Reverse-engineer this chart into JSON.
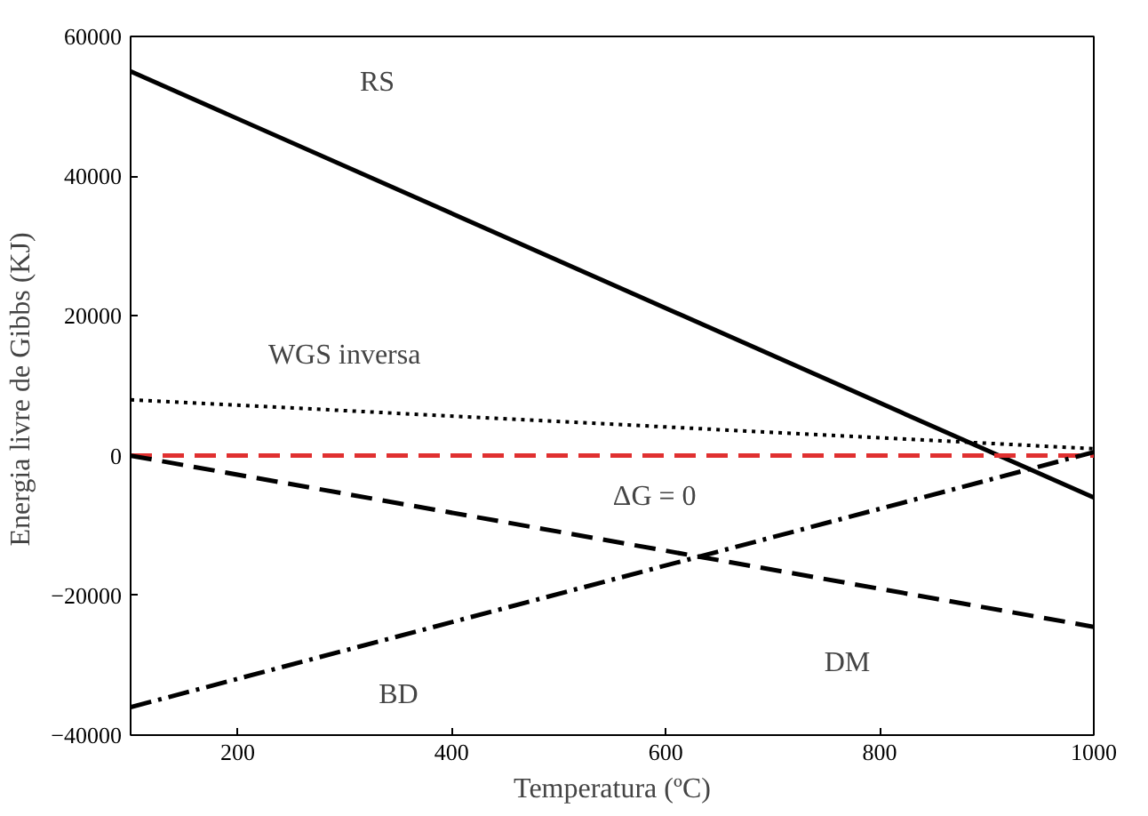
{
  "chart_data": {
    "type": "line",
    "xlabel": "Temperatura (ºC)",
    "ylabel": "Energia livre de Gibbs  (KJ)",
    "xlim": [
      100,
      1000
    ],
    "ylim": [
      -40000,
      60000
    ],
    "xticks": [
      200,
      400,
      600,
      800,
      1000
    ],
    "yticks": [
      -40000,
      -20000,
      0,
      20000,
      40000,
      60000
    ],
    "grid": false,
    "legend": false,
    "x": [
      100,
      1000
    ],
    "series": [
      {
        "name": "RS",
        "values": [
          55000,
          -6000
        ],
        "color": "#000000",
        "line_style": "solid"
      },
      {
        "name": "WGS inversa",
        "values": [
          8000,
          1000
        ],
        "color": "#000000",
        "line_style": "dotted"
      },
      {
        "name": "ΔG = 0",
        "values": [
          0,
          0
        ],
        "color": "#e03030",
        "line_style": "dashed"
      },
      {
        "name": "DM",
        "values": [
          0,
          -24500
        ],
        "color": "#000000",
        "line_style": "dashed"
      },
      {
        "name": "BD",
        "values": [
          -36000,
          500
        ],
        "color": "#000000",
        "line_style": "dashdot"
      }
    ]
  }
}
